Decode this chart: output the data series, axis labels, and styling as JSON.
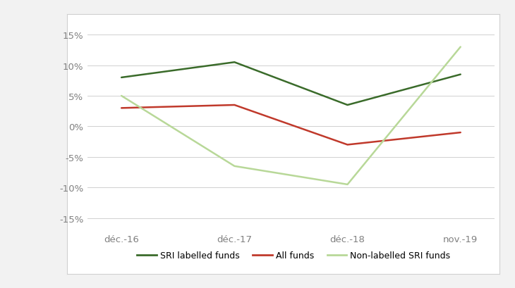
{
  "x_labels": [
    "déc.-16",
    "déc.-17",
    "déc.-18",
    "nov.-19"
  ],
  "x_positions": [
    0,
    1,
    2,
    3
  ],
  "series": [
    {
      "label": "SRI labelled funds",
      "values": [
        8.0,
        10.5,
        3.5,
        8.5
      ],
      "color": "#3a6b2a",
      "linewidth": 1.8
    },
    {
      "label": "All funds",
      "values": [
        3.0,
        3.5,
        -3.0,
        -1.0
      ],
      "color": "#c0392b",
      "linewidth": 1.8
    },
    {
      "label": "Non-labelled SRI funds",
      "values": [
        5.0,
        -6.5,
        -9.5,
        13.0
      ],
      "color": "#b8d898",
      "linewidth": 1.8
    }
  ],
  "ylim": [
    -17,
    17
  ],
  "yticks": [
    -15,
    -10,
    -5,
    0,
    5,
    10,
    15
  ],
  "ytick_labels": [
    "-15%",
    "-10%",
    "-5%",
    "0%",
    "5%",
    "10%",
    "15%"
  ],
  "grid_color": "#d0d0d0",
  "background_color": "#f2f2f2",
  "plot_bg_color": "#ffffff",
  "box_color": "#d0d0d0",
  "legend_fontsize": 9,
  "tick_fontsize": 9.5,
  "axis_label_color": "#808080"
}
